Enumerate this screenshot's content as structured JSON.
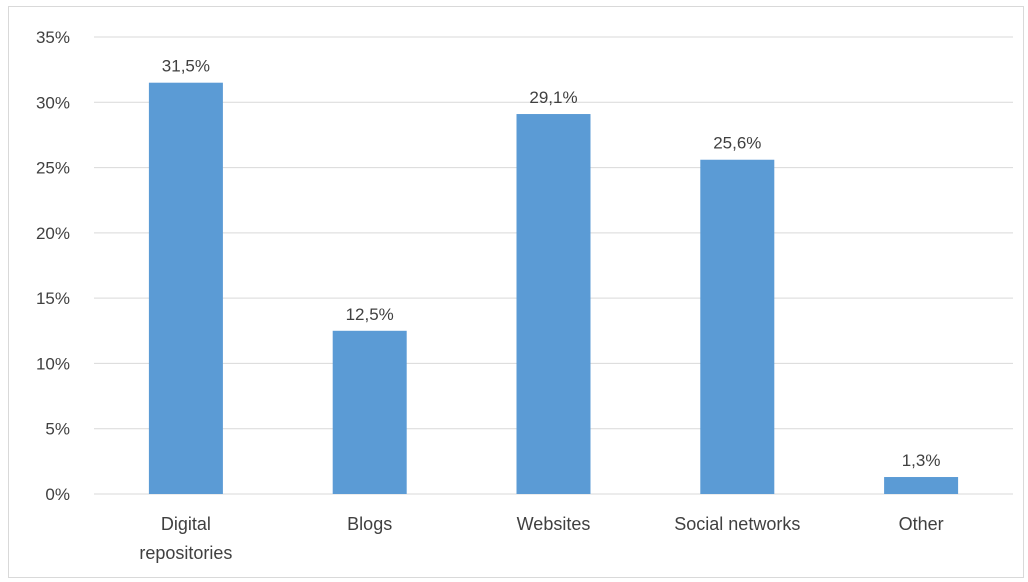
{
  "chart_data": {
    "type": "bar",
    "categories": [
      [
        "Digital",
        "repositories"
      ],
      [
        "Blogs"
      ],
      [
        "Websites"
      ],
      [
        "Social networks"
      ],
      [
        "Other"
      ]
    ],
    "values": [
      31.5,
      12.5,
      29.1,
      25.6,
      1.3
    ],
    "data_labels": [
      "31,5%",
      "12,5%",
      "29,1%",
      "25,6%",
      "1,3%"
    ],
    "y_ticks": [
      0,
      5,
      10,
      15,
      20,
      25,
      30,
      35
    ],
    "y_tick_labels": [
      "0%",
      "5%",
      "10%",
      "15%",
      "20%",
      "25%",
      "30%",
      "35%"
    ],
    "ylim": [
      0,
      35
    ],
    "title": "",
    "xlabel": "",
    "ylabel": "",
    "grid": true,
    "bar_color": "#5b9bd5",
    "grid_color": "#d9d9d9"
  }
}
